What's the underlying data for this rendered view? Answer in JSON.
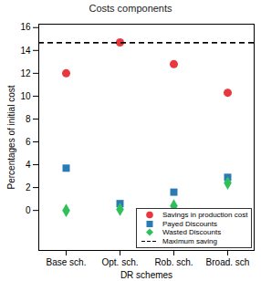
{
  "chart_data": {
    "type": "scatter",
    "title": "Costs components",
    "x_label": "DR schemes",
    "y_label": "Percentages of initial cost",
    "categories": [
      "Base sch.",
      "Opt. sch.",
      "Rob. sch.",
      "Broad. sch"
    ],
    "series": [
      {
        "name": "Savings in production cost",
        "color": "#e8383d",
        "marker": "circle",
        "values": [
          12,
          14.7,
          12.8,
          10.3
        ]
      },
      {
        "name": "Payed Discounts",
        "color": "#2a7ab8",
        "marker": "square",
        "values": [
          3.7,
          0.6,
          1.6,
          2.9
        ]
      },
      {
        "name": "Wasted Discounts",
        "color": "#2fbf5b",
        "marker": "diamond",
        "values": [
          0,
          0.1,
          0.4,
          2.4
        ]
      },
      {
        "name": "Maximum saving",
        "color": "#000000",
        "type": "line",
        "line_style": "dashed",
        "values": [
          14.7,
          14.7,
          14.7,
          14.7
        ]
      }
    ],
    "ylim": [
      -3.5,
      16.3
    ],
    "yticks": [
      0,
      2,
      4,
      6,
      8,
      10,
      12,
      14,
      16
    ],
    "grid": false,
    "legend": "lower right"
  }
}
